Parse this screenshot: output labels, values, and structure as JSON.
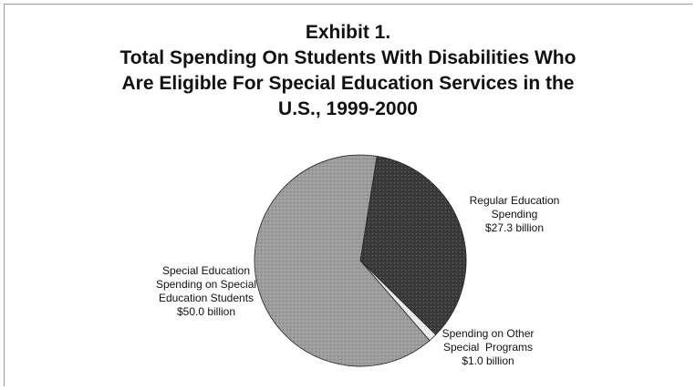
{
  "chart_data": {
    "type": "pie",
    "title": "Exhibit 1.",
    "subtitle_lines": [
      "Total Spending On Students With Disabilities Who",
      "Are Eligible For Special Education Services in the",
      "U.S., 1999-2000"
    ],
    "slices": [
      {
        "label_lines": [
          "Regular Education",
          "Spending",
          "$27.3 billion"
        ],
        "value": 27.3,
        "color": "#3a3a3a"
      },
      {
        "label_lines": [
          "Spending on Other",
          "Special  Programs",
          "$1.0 billion"
        ],
        "value": 1.0,
        "color": "#eeeeee"
      },
      {
        "label_lines": [
          "Special Education",
          "Spending on Special",
          "Education Students",
          "$50.0 billion"
        ],
        "value": 50.0,
        "color": "#9c9c9c"
      }
    ],
    "unit": "billion"
  }
}
